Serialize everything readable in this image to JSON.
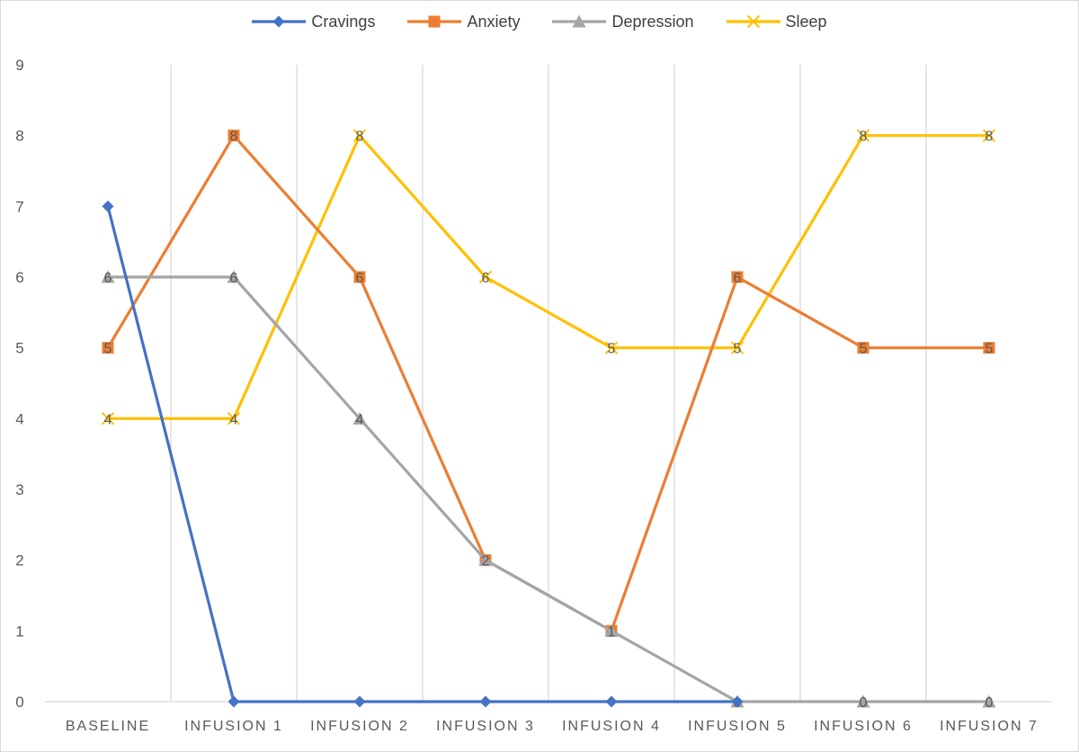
{
  "chart_data": {
    "type": "line",
    "title": "",
    "xlabel": "",
    "ylabel": "",
    "categories": [
      "BASELINE",
      "INFUSION 1",
      "INFUSION 2",
      "INFUSION 3",
      "INFUSION 4",
      "INFUSION 5",
      "INFUSION 6",
      "INFUSION 7"
    ],
    "ylim": [
      0,
      9
    ],
    "yticks": [
      0,
      1,
      2,
      3,
      4,
      5,
      6,
      7,
      8,
      9
    ],
    "grid": "vertical category separators",
    "legend_position": "top",
    "series": [
      {
        "name": "Cravings",
        "color": "#4472c4",
        "marker": "diamond",
        "values": [
          7,
          0,
          0,
          0,
          0,
          0,
          null,
          null
        ],
        "data_labels": false
      },
      {
        "name": "Anxiety",
        "color": "#ed7d31",
        "marker": "square",
        "values": [
          5,
          8,
          6,
          2,
          1,
          6,
          5,
          5
        ],
        "data_labels": true
      },
      {
        "name": "Depression",
        "color": "#a5a5a5",
        "marker": "triangle",
        "values": [
          6,
          6,
          4,
          2,
          1,
          0,
          0,
          0
        ],
        "data_labels": true
      },
      {
        "name": "Sleep",
        "color": "#ffc000",
        "marker": "x",
        "values": [
          4,
          4,
          8,
          6,
          5,
          5,
          8,
          8
        ],
        "data_labels": true
      }
    ]
  }
}
